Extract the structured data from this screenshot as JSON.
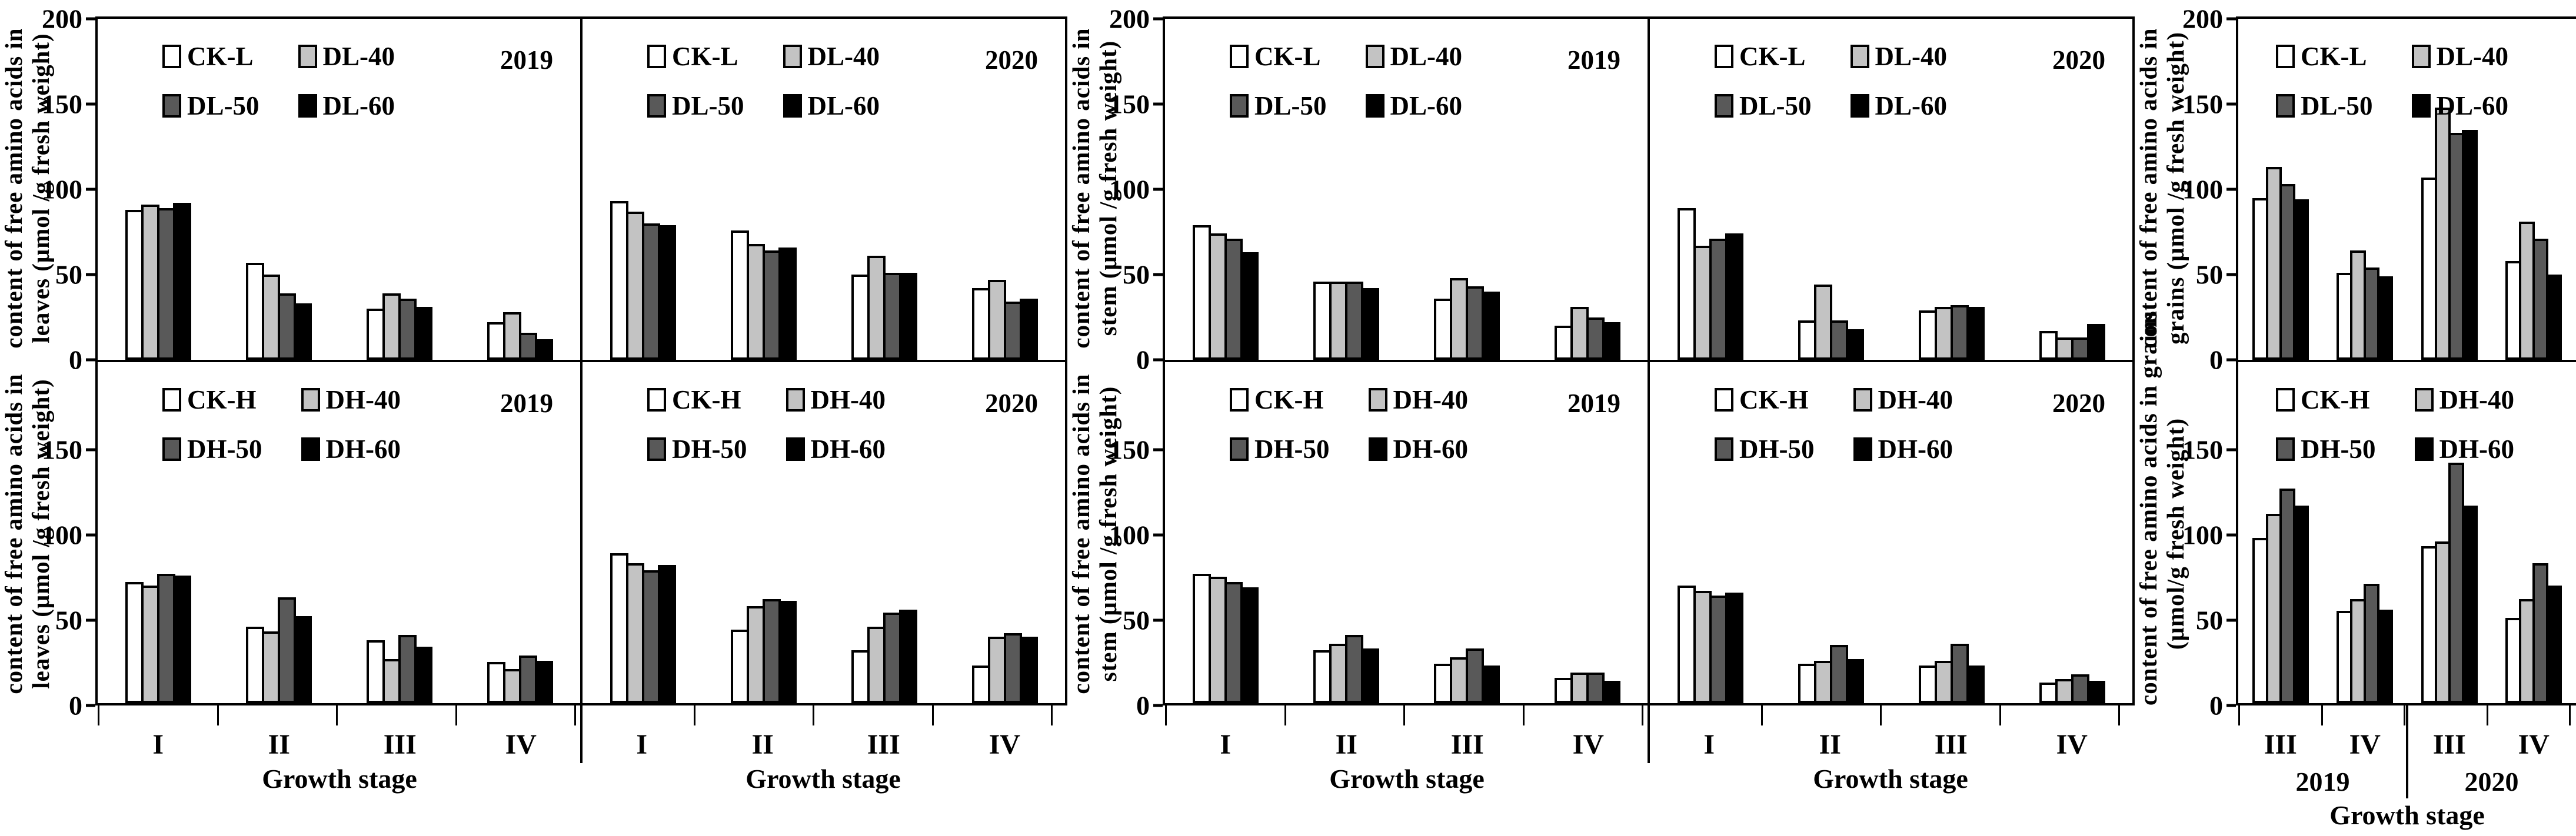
{
  "chart_style": {
    "bar_colors": [
      "#ffffff",
      "#c3c3c3",
      "#595959",
      "#000000"
    ],
    "outline_color": "#000000",
    "background": "#ffffff"
  },
  "chart_data": [
    {
      "id": "leaves",
      "type": "bar",
      "ylim": [
        0,
        200
      ],
      "yticks": [
        0,
        50,
        100,
        150,
        200
      ],
      "xlabel": "Growth stage",
      "categories": [
        "I",
        "II",
        "III",
        "IV"
      ],
      "rows": [
        {
          "ylabel_line1": "content of free amino acids in",
          "ylabel_line2": "leaves (μmol /g fresh weight)",
          "legend": [
            "CK-L",
            "DL-40",
            "DL-50",
            "DL-60"
          ],
          "panels": [
            {
              "year": "2019",
              "series": [
                {
                  "name": "CK-L",
                  "values": [
                    88,
                    57,
                    30,
                    22
                  ]
                },
                {
                  "name": "DL-40",
                  "values": [
                    91,
                    50,
                    39,
                    28
                  ]
                },
                {
                  "name": "DL-50",
                  "values": [
                    89,
                    39,
                    36,
                    16
                  ]
                },
                {
                  "name": "DL-60",
                  "values": [
                    92,
                    33,
                    31,
                    12
                  ]
                }
              ]
            },
            {
              "year": "2020",
              "series": [
                {
                  "name": "CK-L",
                  "values": [
                    93,
                    76,
                    50,
                    42
                  ]
                },
                {
                  "name": "DL-40",
                  "values": [
                    87,
                    68,
                    61,
                    47
                  ]
                },
                {
                  "name": "DL-50",
                  "values": [
                    80,
                    64,
                    51,
                    34
                  ]
                },
                {
                  "name": "DL-60",
                  "values": [
                    79,
                    66,
                    51,
                    36
                  ]
                }
              ]
            }
          ]
        },
        {
          "ylabel_line1": "content of free amino acids in",
          "ylabel_line2": "leaves (μmol /g fresh weight)",
          "legend": [
            "CK-H",
            "DH-40",
            "DH-50",
            "DH-60"
          ],
          "panels": [
            {
              "year": "2019",
              "series": [
                {
                  "name": "CK-H",
                  "values": [
                    71,
                    45,
                    37,
                    24
                  ]
                },
                {
                  "name": "DH-40",
                  "values": [
                    69,
                    42,
                    26,
                    20
                  ]
                },
                {
                  "name": "DH-50",
                  "values": [
                    76,
                    62,
                    40,
                    28
                  ]
                },
                {
                  "name": "DH-60",
                  "values": [
                    75,
                    51,
                    33,
                    25
                  ]
                }
              ]
            },
            {
              "year": "2020",
              "series": [
                {
                  "name": "CK-H",
                  "values": [
                    88,
                    43,
                    31,
                    22
                  ]
                },
                {
                  "name": "DH-40",
                  "values": [
                    82,
                    57,
                    45,
                    39
                  ]
                },
                {
                  "name": "DH-50",
                  "values": [
                    78,
                    61,
                    53,
                    41
                  ]
                },
                {
                  "name": "DH-60",
                  "values": [
                    81,
                    60,
                    55,
                    39
                  ]
                }
              ]
            }
          ]
        }
      ]
    },
    {
      "id": "stem",
      "type": "bar",
      "ylim": [
        0,
        200
      ],
      "yticks": [
        0,
        50,
        100,
        150,
        200
      ],
      "xlabel": "Growth stage",
      "categories": [
        "I",
        "II",
        "III",
        "IV"
      ],
      "rows": [
        {
          "ylabel_line1": "content of free amino acids in",
          "ylabel_line2": "stem (μmol /g fresh weight)",
          "legend": [
            "CK-L",
            "DL-40",
            "DL-50",
            "DL-60"
          ],
          "panels": [
            {
              "year": "2019",
              "series": [
                {
                  "name": "CK-L",
                  "values": [
                    79,
                    46,
                    36,
                    20
                  ]
                },
                {
                  "name": "DL-40",
                  "values": [
                    74,
                    46,
                    48,
                    31
                  ]
                },
                {
                  "name": "DL-50",
                  "values": [
                    71,
                    46,
                    43,
                    25
                  ]
                },
                {
                  "name": "DL-60",
                  "values": [
                    63,
                    42,
                    40,
                    22
                  ]
                }
              ]
            },
            {
              "year": "2020",
              "series": [
                {
                  "name": "CK-L",
                  "values": [
                    89,
                    23,
                    29,
                    17
                  ]
                },
                {
                  "name": "DL-40",
                  "values": [
                    67,
                    44,
                    31,
                    13
                  ]
                },
                {
                  "name": "DL-50",
                  "values": [
                    71,
                    23,
                    32,
                    13
                  ]
                },
                {
                  "name": "DL-60",
                  "values": [
                    74,
                    18,
                    31,
                    21
                  ]
                }
              ]
            }
          ]
        },
        {
          "ylabel_line1": "content of free amino acids in",
          "ylabel_line2": "stem (μmol /g fresh weight)",
          "legend": [
            "CK-H",
            "DH-40",
            "DH-50",
            "DH-60"
          ],
          "panels": [
            {
              "year": "2019",
              "series": [
                {
                  "name": "CK-H",
                  "values": [
                    76,
                    31,
                    23,
                    15
                  ]
                },
                {
                  "name": "DH-40",
                  "values": [
                    74,
                    35,
                    27,
                    18
                  ]
                },
                {
                  "name": "DH-50",
                  "values": [
                    71,
                    40,
                    32,
                    18
                  ]
                },
                {
                  "name": "DH-60",
                  "values": [
                    68,
                    32,
                    22,
                    13
                  ]
                }
              ]
            },
            {
              "year": "2020",
              "series": [
                {
                  "name": "CK-H",
                  "values": [
                    69,
                    23,
                    22,
                    12
                  ]
                },
                {
                  "name": "DH-40",
                  "values": [
                    66,
                    25,
                    25,
                    14
                  ]
                },
                {
                  "name": "DH-50",
                  "values": [
                    63,
                    34,
                    35,
                    17
                  ]
                },
                {
                  "name": "DH-60",
                  "values": [
                    65,
                    26,
                    22,
                    13
                  ]
                }
              ]
            }
          ]
        }
      ]
    },
    {
      "id": "grains",
      "type": "bar",
      "ylim": [
        0,
        200
      ],
      "yticks": [
        0,
        50,
        100,
        150,
        200
      ],
      "xlabel": "Growth stage",
      "categories": [
        "III",
        "IV",
        "III",
        "IV"
      ],
      "year_groups": [
        {
          "label": "2019",
          "span": 2
        },
        {
          "label": "2020",
          "span": 2
        }
      ],
      "rows": [
        {
          "ylabel_line1": "content of free amino acids in",
          "ylabel_line2": "grains (μmol /g fresh weight)",
          "legend": [
            "CK-L",
            "DL-40",
            "DL-50",
            "DL-60"
          ],
          "panels": [
            {
              "year": "",
              "series": [
                {
                  "name": "CK-L",
                  "values": [
                    95,
                    51,
                    107,
                    58
                  ]
                },
                {
                  "name": "DL-40",
                  "values": [
                    113,
                    64,
                    148,
                    81
                  ]
                },
                {
                  "name": "DL-50",
                  "values": [
                    103,
                    54,
                    133,
                    71
                  ]
                },
                {
                  "name": "DL-60",
                  "values": [
                    94,
                    49,
                    135,
                    50
                  ]
                }
              ]
            }
          ]
        },
        {
          "ylabel_line1": "content of free amino acids in grains",
          "ylabel_line2": "(μmol/g fresh weight)",
          "legend": [
            "CK-H",
            "DH-40",
            "DH-50",
            "DH-60"
          ],
          "panels": [
            {
              "year": "",
              "series": [
                {
                  "name": "CK-H",
                  "values": [
                    97,
                    54,
                    92,
                    50
                  ]
                },
                {
                  "name": "DH-40",
                  "values": [
                    111,
                    61,
                    95,
                    61
                  ]
                },
                {
                  "name": "DH-50",
                  "values": [
                    126,
                    70,
                    141,
                    82
                  ]
                },
                {
                  "name": "DH-60",
                  "values": [
                    116,
                    55,
                    116,
                    69
                  ]
                }
              ]
            }
          ]
        }
      ]
    }
  ]
}
